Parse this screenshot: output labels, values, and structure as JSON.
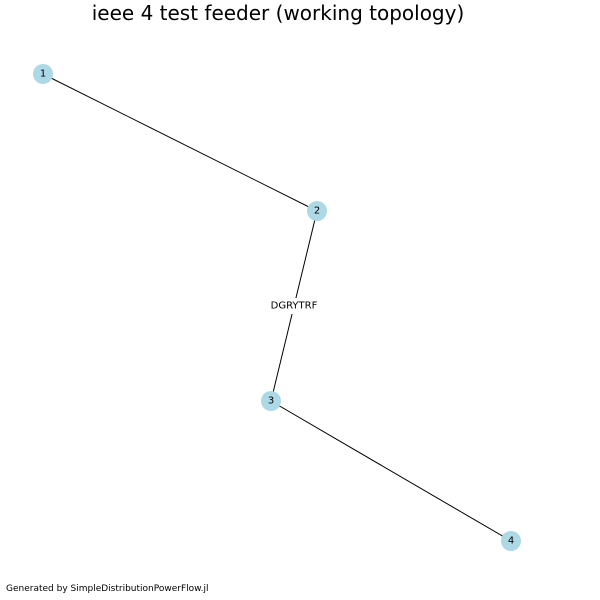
{
  "title": "ieee 4 test feeder (working topology)",
  "footer": "Generated by SimpleDistributionPowerFlow.jl",
  "colors": {
    "node_fill": "#add8e6",
    "edge": "#000000",
    "text": "#000000",
    "background": "#ffffff"
  },
  "nodes": [
    {
      "id": "1",
      "label": "1"
    },
    {
      "id": "2",
      "label": "2"
    },
    {
      "id": "3",
      "label": "3"
    },
    {
      "id": "4",
      "label": "4"
    }
  ],
  "edges": [
    {
      "from": "1",
      "to": "2",
      "label": ""
    },
    {
      "from": "2",
      "to": "3",
      "label": "DGRYTRF"
    },
    {
      "from": "3",
      "to": "4",
      "label": ""
    }
  ]
}
